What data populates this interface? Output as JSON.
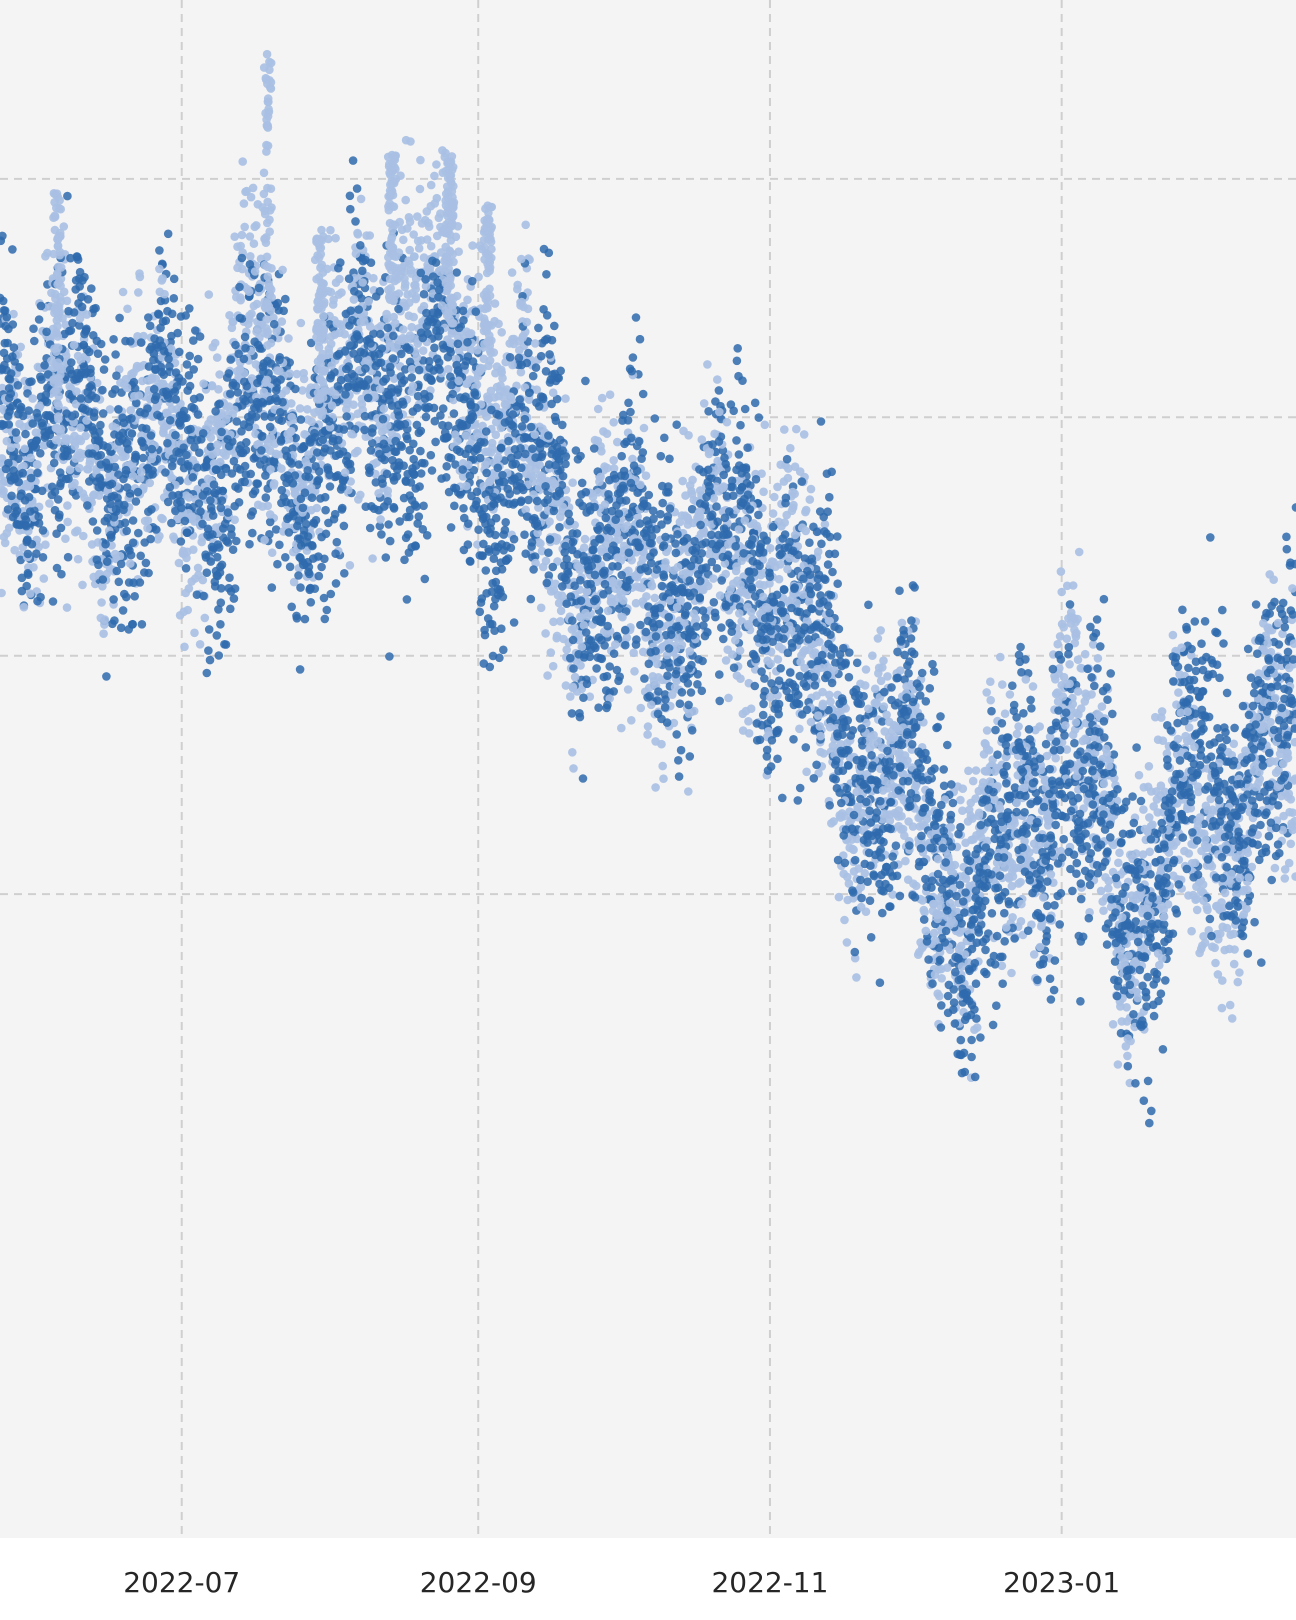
{
  "chart_data": {
    "type": "scatter",
    "title": "",
    "xlabel": "",
    "ylabel": "",
    "x_tick_labels": [
      "2022-07",
      "2022-09",
      "2022-11",
      "2023-01"
    ],
    "x_ticks": [
      "2022-07-01",
      "2022-09-01",
      "2022-11-01",
      "2023-01-01"
    ],
    "xlim": [
      "2022-05-24",
      "2023-02-19"
    ],
    "y_gridlines": [
      0.1,
      0.3,
      0.5,
      0.7
    ],
    "ylim": [
      -0.44,
      0.85
    ],
    "grid": true,
    "legend": "none",
    "colors": {
      "dark_series": "#2e6aad",
      "light_series": "#a9c0e3",
      "plot_background": "#f4f4f5",
      "grid": "#cfcfcf"
    },
    "series": [
      {
        "color": "#2e6aad",
        "trend_x": [
          "2022-05-24",
          "2022-06-01",
          "2022-06-15",
          "2022-07-01",
          "2022-07-15",
          "2022-08-01",
          "2022-08-15",
          "2022-09-01",
          "2022-09-15",
          "2022-10-01",
          "2022-10-15",
          "2022-11-01",
          "2022-11-15",
          "2022-12-01",
          "2022-12-15",
          "2023-01-01",
          "2023-01-15",
          "2023-02-01",
          "2023-02-19"
        ],
        "trend_y": [
          0.52,
          0.49,
          0.49,
          0.47,
          0.48,
          0.47,
          0.54,
          0.47,
          0.44,
          0.36,
          0.38,
          0.38,
          0.25,
          0.17,
          0.09,
          0.22,
          0.09,
          0.2,
          0.24
        ],
        "spread": 0.09
      },
      {
        "color": "#a9c0e3",
        "trend_x": [
          "2022-05-24",
          "2022-06-01",
          "2022-06-15",
          "2022-07-01",
          "2022-07-15",
          "2022-08-01",
          "2022-08-15",
          "2022-09-01",
          "2022-09-15",
          "2022-10-01",
          "2022-10-15",
          "2022-11-01",
          "2022-11-15",
          "2022-12-01",
          "2022-12-15",
          "2023-01-01",
          "2023-01-15",
          "2023-02-01",
          "2023-02-19"
        ],
        "trend_y": [
          0.52,
          0.48,
          0.48,
          0.45,
          0.53,
          0.49,
          0.6,
          0.56,
          0.43,
          0.35,
          0.37,
          0.39,
          0.24,
          0.16,
          0.1,
          0.24,
          0.11,
          0.16,
          0.22
        ],
        "spread": 0.08,
        "spikes": [
          {
            "x": "2022-07-19",
            "y_max": 0.81
          },
          {
            "x": "2022-08-14",
            "y_max": 0.72
          },
          {
            "x": "2022-08-26",
            "y_max": 0.72
          },
          {
            "x": "2022-09-03",
            "y_max": 0.68
          },
          {
            "x": "2022-06-05",
            "y_max": 0.69
          },
          {
            "x": "2022-07-30",
            "y_max": 0.66
          }
        ]
      }
    ]
  }
}
